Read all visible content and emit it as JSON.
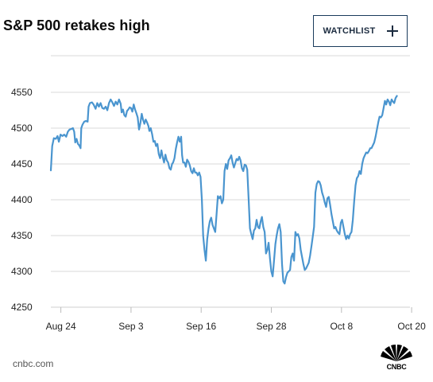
{
  "header": {
    "title": "S&P 500 retakes high",
    "watchlist_label": "WATCHLIST"
  },
  "footer": {
    "source": "cnbc.com",
    "logo_text": "CNBC"
  },
  "colors": {
    "line": "#4a95cf",
    "grid": "#d9d9d9",
    "axis": "#cfcfcf",
    "button_border": "#1a3b5c"
  },
  "chart_data": {
    "type": "line",
    "title": "S&P 500 retakes high",
    "xlabel": "",
    "ylabel": "",
    "ylim": [
      4250,
      4575
    ],
    "yticks": [
      4250,
      4300,
      4350,
      4400,
      4450,
      4500,
      4550
    ],
    "xticks": [
      {
        "label": "Aug 24",
        "x": 3
      },
      {
        "label": "Sep 3",
        "x": 24
      },
      {
        "label": "Sep 16",
        "x": 45
      },
      {
        "label": "Sep 28",
        "x": 66
      },
      {
        "label": "Oct 8",
        "x": 87
      },
      {
        "label": "Oct 20",
        "x": 108
      }
    ],
    "grid": true,
    "series": [
      {
        "values": [
          [
            0,
            4441
          ],
          [
            0.4,
            4475
          ],
          [
            0.9,
            4486
          ],
          [
            1.5,
            4485
          ],
          [
            2,
            4489
          ],
          [
            2.4,
            4481
          ],
          [
            2.9,
            4491
          ],
          [
            3.5,
            4489
          ],
          [
            4,
            4491
          ],
          [
            4.6,
            4488
          ],
          [
            5.1,
            4495
          ],
          [
            5.6,
            4498
          ],
          [
            6.2,
            4499
          ],
          [
            6.6,
            4500
          ],
          [
            7,
            4495
          ],
          [
            7.3,
            4480
          ],
          [
            7.7,
            4485
          ],
          [
            8.1,
            4478
          ],
          [
            8.5,
            4476
          ],
          [
            8.9,
            4472
          ],
          [
            9.1,
            4500
          ],
          [
            9.5,
            4505
          ],
          [
            10,
            4509
          ],
          [
            10.5,
            4510
          ],
          [
            11,
            4509
          ],
          [
            11.3,
            4530
          ],
          [
            11.7,
            4535
          ],
          [
            12.3,
            4536
          ],
          [
            12.8,
            4533
          ],
          [
            13.4,
            4527
          ],
          [
            13.9,
            4535
          ],
          [
            14.4,
            4530
          ],
          [
            14.9,
            4535
          ],
          [
            15.4,
            4528
          ],
          [
            15.9,
            4527
          ],
          [
            16.4,
            4530
          ],
          [
            16.9,
            4525
          ],
          [
            17.4,
            4535
          ],
          [
            17.9,
            4540
          ],
          [
            18.4,
            4536
          ],
          [
            18.9,
            4531
          ],
          [
            19.4,
            4537
          ],
          [
            19.9,
            4533
          ],
          [
            20.4,
            4540
          ],
          [
            20.9,
            4534
          ],
          [
            21.2,
            4522
          ],
          [
            21.6,
            4526
          ],
          [
            22,
            4518
          ],
          [
            22.4,
            4516
          ],
          [
            22.8,
            4524
          ],
          [
            23.2,
            4526
          ],
          [
            23.6,
            4529
          ],
          [
            24,
            4528
          ],
          [
            24.4,
            4523
          ],
          [
            24.8,
            4533
          ],
          [
            25.2,
            4526
          ],
          [
            25.6,
            4521
          ],
          [
            26,
            4515
          ],
          [
            26.4,
            4498
          ],
          [
            26.8,
            4507
          ],
          [
            27.2,
            4520
          ],
          [
            27.6,
            4512
          ],
          [
            28,
            4506
          ],
          [
            28.4,
            4512
          ],
          [
            28.8,
            4508
          ],
          [
            29.2,
            4503
          ],
          [
            29.5,
            4496
          ],
          [
            29.9,
            4500
          ],
          [
            30.3,
            4492
          ],
          [
            30.7,
            4481
          ],
          [
            31.1,
            4482
          ],
          [
            31.5,
            4475
          ],
          [
            31.9,
            4478
          ],
          [
            32.3,
            4464
          ],
          [
            32.7,
            4458
          ],
          [
            33.1,
            4469
          ],
          [
            33.5,
            4459
          ],
          [
            33.9,
            4452
          ],
          [
            34.3,
            4463
          ],
          [
            34.7,
            4455
          ],
          [
            35.1,
            4452
          ],
          [
            35.5,
            4444
          ],
          [
            35.9,
            4442
          ],
          [
            36.3,
            4450
          ],
          [
            36.6,
            4452
          ],
          [
            37,
            4458
          ],
          [
            37.4,
            4471
          ],
          [
            37.8,
            4480
          ],
          [
            38.2,
            4488
          ],
          [
            38.6,
            4481
          ],
          [
            39,
            4488
          ],
          [
            39.3,
            4462
          ],
          [
            39.6,
            4452
          ],
          [
            40,
            4452
          ],
          [
            40.4,
            4446
          ],
          [
            40.8,
            4456
          ],
          [
            41.2,
            4453
          ],
          [
            41.6,
            4448
          ],
          [
            42,
            4440
          ],
          [
            42.4,
            4437
          ],
          [
            42.8,
            4444
          ],
          [
            43.2,
            4438
          ],
          [
            43.6,
            4438
          ],
          [
            44,
            4434
          ],
          [
            44.4,
            4438
          ],
          [
            44.8,
            4432
          ],
          [
            45.2,
            4400
          ],
          [
            45.6,
            4350
          ],
          [
            46,
            4330
          ],
          [
            46.4,
            4315
          ],
          [
            46.8,
            4345
          ],
          [
            47.2,
            4360
          ],
          [
            47.6,
            4370
          ],
          [
            48,
            4375
          ],
          [
            48.4,
            4365
          ],
          [
            48.8,
            4360
          ],
          [
            49.2,
            4355
          ],
          [
            49.6,
            4380
          ],
          [
            50,
            4405
          ],
          [
            50.4,
            4402
          ],
          [
            50.8,
            4405
          ],
          [
            51.2,
            4395
          ],
          [
            51.6,
            4400
          ],
          [
            52,
            4440
          ],
          [
            52.4,
            4450
          ],
          [
            52.8,
            4443
          ],
          [
            53.2,
            4455
          ],
          [
            53.6,
            4458
          ],
          [
            54,
            4462
          ],
          [
            54.4,
            4452
          ],
          [
            54.8,
            4445
          ],
          [
            55.2,
            4451
          ],
          [
            55.6,
            4457
          ],
          [
            56,
            4455
          ],
          [
            56.4,
            4460
          ],
          [
            56.8,
            4455
          ],
          [
            57.2,
            4444
          ],
          [
            57.6,
            4440
          ],
          [
            58,
            4449
          ],
          [
            58.4,
            4448
          ],
          [
            58.8,
            4442
          ],
          [
            59.2,
            4402
          ],
          [
            59.6,
            4360
          ],
          [
            60,
            4352
          ],
          [
            60.4,
            4345
          ],
          [
            60.8,
            4357
          ],
          [
            61.2,
            4360
          ],
          [
            61.6,
            4372
          ],
          [
            62,
            4362
          ],
          [
            62.4,
            4360
          ],
          [
            62.8,
            4370
          ],
          [
            63.2,
            4376
          ],
          [
            63.6,
            4362
          ],
          [
            64,
            4355
          ],
          [
            64.4,
            4325
          ],
          [
            64.8,
            4330
          ],
          [
            65.2,
            4340
          ],
          [
            65.6,
            4318
          ],
          [
            66,
            4300
          ],
          [
            66.4,
            4293
          ],
          [
            66.8,
            4315
          ],
          [
            67.2,
            4338
          ],
          [
            67.6,
            4350
          ],
          [
            68,
            4360
          ],
          [
            68.4,
            4366
          ],
          [
            68.8,
            4355
          ],
          [
            69.2,
            4310
          ],
          [
            69.6,
            4286
          ],
          [
            70,
            4283
          ],
          [
            70.4,
            4292
          ],
          [
            70.8,
            4298
          ],
          [
            71.2,
            4300
          ],
          [
            71.6,
            4302
          ],
          [
            72,
            4320
          ],
          [
            72.4,
            4325
          ],
          [
            72.8,
            4315
          ],
          [
            73.2,
            4355
          ],
          [
            73.6,
            4350
          ],
          [
            74,
            4352
          ],
          [
            74.4,
            4346
          ],
          [
            74.8,
            4330
          ],
          [
            75.2,
            4320
          ],
          [
            75.6,
            4310
          ],
          [
            76,
            4302
          ],
          [
            76.4,
            4304
          ],
          [
            76.8,
            4308
          ],
          [
            77.2,
            4312
          ],
          [
            77.6,
            4322
          ],
          [
            78,
            4335
          ],
          [
            78.4,
            4348
          ],
          [
            78.8,
            4362
          ],
          [
            79.2,
            4410
          ],
          [
            79.6,
            4422
          ],
          [
            80,
            4426
          ],
          [
            80.4,
            4425
          ],
          [
            80.8,
            4420
          ],
          [
            81.2,
            4410
          ],
          [
            81.6,
            4404
          ],
          [
            82,
            4396
          ],
          [
            82.4,
            4390
          ],
          [
            82.8,
            4402
          ],
          [
            83.2,
            4404
          ],
          [
            83.6,
            4393
          ],
          [
            84,
            4380
          ],
          [
            84.4,
            4370
          ],
          [
            84.8,
            4360
          ],
          [
            85.2,
            4362
          ],
          [
            85.6,
            4357
          ],
          [
            86,
            4354
          ],
          [
            86.4,
            4352
          ],
          [
            86.8,
            4368
          ],
          [
            87.2,
            4372
          ],
          [
            87.6,
            4362
          ],
          [
            88,
            4352
          ],
          [
            88.4,
            4345
          ],
          [
            88.8,
            4350
          ],
          [
            89.2,
            4346
          ],
          [
            89.6,
            4352
          ],
          [
            90,
            4355
          ],
          [
            90.4,
            4372
          ],
          [
            90.8,
            4398
          ],
          [
            91.2,
            4420
          ],
          [
            91.6,
            4430
          ],
          [
            92,
            4433
          ],
          [
            92.4,
            4440
          ],
          [
            92.8,
            4436
          ],
          [
            93.2,
            4450
          ],
          [
            93.6,
            4458
          ],
          [
            94,
            4462
          ],
          [
            94.4,
            4466
          ],
          [
            94.8,
            4465
          ],
          [
            95.2,
            4468
          ],
          [
            95.6,
            4472
          ],
          [
            96,
            4472
          ],
          [
            96.4,
            4476
          ],
          [
            96.8,
            4480
          ],
          [
            97.2,
            4488
          ],
          [
            97.6,
            4498
          ],
          [
            98,
            4508
          ],
          [
            98.4,
            4516
          ],
          [
            98.8,
            4515
          ],
          [
            99.2,
            4518
          ],
          [
            99.6,
            4528
          ],
          [
            100,
            4538
          ],
          [
            100.4,
            4533
          ],
          [
            100.8,
            4540
          ],
          [
            101.2,
            4537
          ],
          [
            101.6,
            4532
          ],
          [
            102,
            4540
          ],
          [
            102.4,
            4537
          ],
          [
            102.8,
            4535
          ],
          [
            103.2,
            4542
          ],
          [
            103.6,
            4545
          ]
        ]
      }
    ]
  }
}
